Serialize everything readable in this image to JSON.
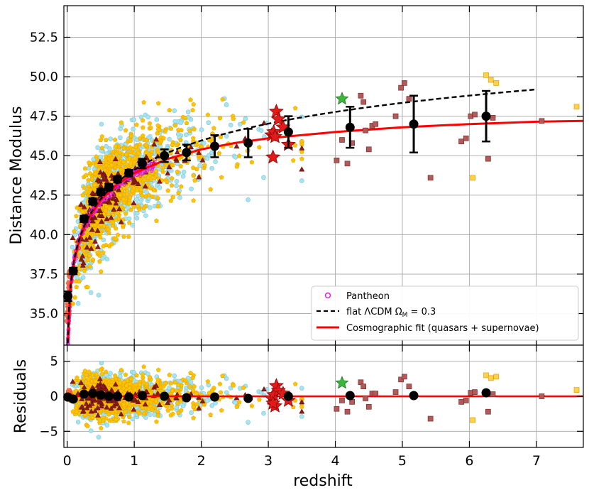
{
  "chart_data": [
    {
      "type": "scatter",
      "panel": "main",
      "ylabel": "Distance Modulus",
      "xlabel": "",
      "xlim": [
        -0.05,
        7.7
      ],
      "ylim": [
        33.0,
        54.5
      ],
      "xticks": [
        0,
        1,
        2,
        3,
        4,
        5,
        6,
        7
      ],
      "yticks": [
        35.0,
        37.5,
        40.0,
        42.5,
        45.0,
        47.5,
        50.0,
        52.5
      ],
      "ytick_labels": [
        "35.0",
        "37.5",
        "40.0",
        "42.5",
        "45.0",
        "47.5",
        "50.0",
        "52.5"
      ],
      "grid": true,
      "legend_position": "lower-right",
      "legend": [
        {
          "label": "Pantheon",
          "marker": "open-circle",
          "color": "#e619e6"
        },
        {
          "label": "flat ΛCDM Ω_M = 0.3",
          "marker": "dashed-line",
          "color": "#000000"
        },
        {
          "label": "Cosmographic fit (quasars + supernovae)",
          "marker": "solid-line",
          "color": "#ff0000"
        }
      ],
      "binned_means": {
        "x": [
          0.01,
          0.09,
          0.25,
          0.38,
          0.5,
          0.62,
          0.75,
          0.92,
          1.12,
          1.45,
          1.78,
          2.2,
          2.7,
          3.3,
          4.22,
          5.17,
          6.25
        ],
        "y": [
          36.1,
          37.7,
          41.0,
          42.1,
          42.7,
          43.0,
          43.5,
          43.9,
          44.5,
          45.0,
          45.2,
          45.6,
          45.8,
          46.5,
          46.8,
          47.0,
          47.5
        ],
        "err": [
          0.3,
          0.2,
          0.2,
          0.2,
          0.2,
          0.2,
          0.2,
          0.2,
          0.3,
          0.4,
          0.5,
          0.7,
          0.9,
          1.0,
          1.3,
          1.8,
          1.6
        ]
      },
      "lcdm_omega_m": 0.3,
      "lcdm_z_max": 7.0,
      "cosmographic_fit": {
        "x": [
          0.01,
          0.05,
          0.1,
          0.2,
          0.3,
          0.5,
          0.75,
          1.0,
          1.5,
          2.0,
          2.5,
          3.0,
          3.5,
          4.0,
          4.5,
          5.0,
          6.0,
          7.0,
          7.7
        ],
        "y": [
          33.2,
          36.6,
          38.3,
          39.9,
          40.9,
          42.2,
          43.2,
          43.9,
          44.8,
          45.4,
          45.8,
          46.1,
          46.3,
          46.5,
          46.65,
          46.8,
          47.0,
          47.15,
          47.2
        ]
      },
      "red_stars": [
        {
          "x": 3.05,
          "y": 46.3
        },
        {
          "x": 3.08,
          "y": 46.5
        },
        {
          "x": 3.1,
          "y": 46.2
        },
        {
          "x": 3.12,
          "y": 47.8
        },
        {
          "x": 3.15,
          "y": 47.3
        },
        {
          "x": 3.07,
          "y": 44.9
        },
        {
          "x": 3.3,
          "y": 45.7
        },
        {
          "x": 3.22,
          "y": 46.8
        }
      ],
      "green_stars": [
        {
          "x": 4.1,
          "y": 48.6
        }
      ],
      "brown_squares": [
        {
          "x": 4.02,
          "y": 44.7
        },
        {
          "x": 4.1,
          "y": 46.0
        },
        {
          "x": 4.18,
          "y": 44.5
        },
        {
          "x": 4.25,
          "y": 45.8
        },
        {
          "x": 4.38,
          "y": 48.8
        },
        {
          "x": 4.42,
          "y": 48.4
        },
        {
          "x": 4.45,
          "y": 46.6
        },
        {
          "x": 4.5,
          "y": 45.4
        },
        {
          "x": 4.55,
          "y": 46.9
        },
        {
          "x": 4.6,
          "y": 47.0
        },
        {
          "x": 4.9,
          "y": 47.5
        },
        {
          "x": 4.98,
          "y": 49.3
        },
        {
          "x": 5.03,
          "y": 49.6
        },
        {
          "x": 5.1,
          "y": 48.6
        },
        {
          "x": 5.42,
          "y": 43.6
        },
        {
          "x": 5.88,
          "y": 45.9
        },
        {
          "x": 5.95,
          "y": 46.1
        },
        {
          "x": 6.02,
          "y": 47.5
        },
        {
          "x": 6.08,
          "y": 47.6
        },
        {
          "x": 6.28,
          "y": 44.8
        },
        {
          "x": 6.35,
          "y": 47.4
        },
        {
          "x": 7.08,
          "y": 47.2
        }
      ],
      "yellow_squares": [
        {
          "x": 6.05,
          "y": 43.6
        },
        {
          "x": 6.25,
          "y": 50.1
        },
        {
          "x": 6.32,
          "y": 49.8
        },
        {
          "x": 6.4,
          "y": 49.6
        },
        {
          "x": 7.6,
          "y": 48.1
        }
      ],
      "scatter_series": [
        {
          "name": "quasars (cyan circles)",
          "color": "#a8e4ef"
        },
        {
          "name": "quasars (yellow pentagons)",
          "color": "#ffc300"
        },
        {
          "name": "dark-red triangles",
          "color": "#8b1a1a"
        },
        {
          "name": "orange hexagons (low z)",
          "color": "#ff6a3d"
        }
      ]
    },
    {
      "type": "scatter",
      "panel": "residuals",
      "ylabel": "Residuals",
      "xlabel": "redshift",
      "xlim": [
        -0.05,
        7.7
      ],
      "ylim": [
        -7.3,
        7.3
      ],
      "xticks": [
        0,
        1,
        2,
        3,
        4,
        5,
        6,
        7
      ],
      "yticks": [
        -5,
        0,
        5
      ],
      "ytick_labels": [
        "−5",
        "0",
        "5"
      ],
      "grid": true,
      "binned_means": {
        "x": [
          0.01,
          0.09,
          0.25,
          0.38,
          0.5,
          0.62,
          0.75,
          0.92,
          1.12,
          1.45,
          1.78,
          2.2,
          2.7,
          3.3,
          4.22,
          5.17,
          6.25
        ],
        "y": [
          -0.1,
          -0.4,
          0.3,
          0.4,
          0.2,
          0.0,
          0.0,
          -0.1,
          0.1,
          0.0,
          -0.2,
          -0.1,
          -0.3,
          0.0,
          0.1,
          0.1,
          0.5
        ]
      },
      "zero_line": 0,
      "red_stars": [
        {
          "x": 3.05,
          "y": -0.3
        },
        {
          "x": 3.08,
          "y": 0.2
        },
        {
          "x": 3.1,
          "y": -1.4
        },
        {
          "x": 3.12,
          "y": 1.5
        },
        {
          "x": 3.15,
          "y": 0.8
        },
        {
          "x": 3.07,
          "y": -1.0
        },
        {
          "x": 3.3,
          "y": -0.6
        },
        {
          "x": 3.22,
          "y": 0.4
        }
      ],
      "green_stars": [
        {
          "x": 4.1,
          "y": 1.9
        }
      ],
      "brown_squares": [
        {
          "x": 4.02,
          "y": -1.8
        },
        {
          "x": 4.1,
          "y": -0.6
        },
        {
          "x": 4.18,
          "y": -2.2
        },
        {
          "x": 4.25,
          "y": -0.8
        },
        {
          "x": 4.38,
          "y": 2.0
        },
        {
          "x": 4.42,
          "y": 1.4
        },
        {
          "x": 4.45,
          "y": -0.3
        },
        {
          "x": 4.5,
          "y": -1.5
        },
        {
          "x": 4.55,
          "y": 0.4
        },
        {
          "x": 4.6,
          "y": 0.4
        },
        {
          "x": 4.9,
          "y": 0.6
        },
        {
          "x": 4.98,
          "y": 2.4
        },
        {
          "x": 5.03,
          "y": 2.8
        },
        {
          "x": 5.1,
          "y": 1.4
        },
        {
          "x": 5.42,
          "y": -3.2
        },
        {
          "x": 5.88,
          "y": -0.8
        },
        {
          "x": 5.95,
          "y": -0.6
        },
        {
          "x": 6.02,
          "y": 0.5
        },
        {
          "x": 6.08,
          "y": 0.6
        },
        {
          "x": 6.28,
          "y": -2.2
        },
        {
          "x": 6.35,
          "y": 0.3
        },
        {
          "x": 7.08,
          "y": 0.0
        }
      ],
      "yellow_squares": [
        {
          "x": 6.05,
          "y": -3.4
        },
        {
          "x": 6.25,
          "y": 3.0
        },
        {
          "x": 6.32,
          "y": 2.6
        },
        {
          "x": 6.4,
          "y": 2.8
        },
        {
          "x": 7.6,
          "y": 0.9
        }
      ]
    }
  ]
}
